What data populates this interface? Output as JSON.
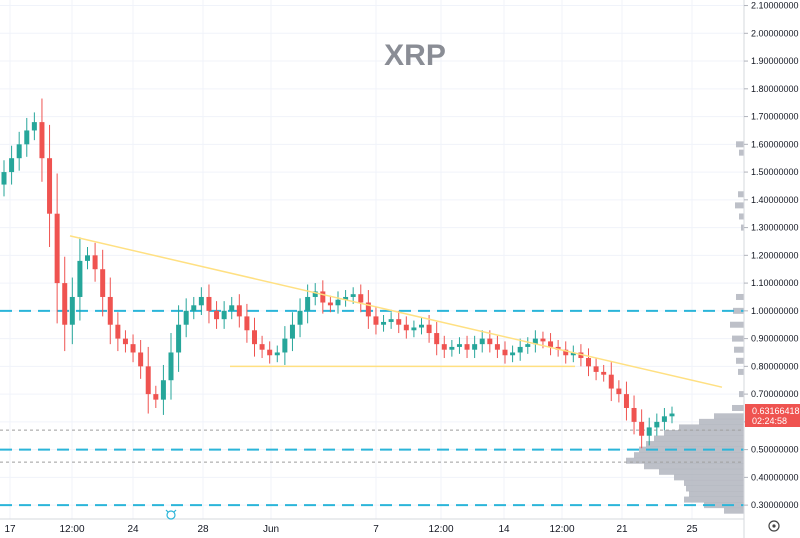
{
  "chart_data": {
    "type": "candlestick",
    "title": "XRP",
    "price_label": "0.63166418",
    "countdown_label": "02:24:58",
    "colors": {
      "up": "#26a69a",
      "down": "#ef5350",
      "trendline": "#ffe082",
      "level_line": "#2bb5d9",
      "dotted_line": "#9e9e9e",
      "volume_profile": "#b2b5be",
      "price_tag": "#ef5350"
    },
    "y_axis": {
      "range": [
        0.25,
        2.12
      ],
      "ticks": [
        "2.10000000",
        "2.00000000",
        "1.90000000",
        "1.80000000",
        "1.70000000",
        "1.60000000",
        "1.50000000",
        "1.40000000",
        "1.30000000",
        "1.20000000",
        "1.10000000",
        "1.00000000",
        "0.90000000",
        "0.80000000",
        "0.70000000",
        "0.60000000",
        "0.50000000",
        "0.40000000",
        "0.30000000"
      ],
      "tick_values": [
        2.1,
        2.0,
        1.9,
        1.8,
        1.7,
        1.6,
        1.5,
        1.4,
        1.3,
        1.2,
        1.1,
        1.0,
        0.9,
        0.8,
        0.7,
        0.6,
        0.5,
        0.4,
        0.3
      ]
    },
    "x_axis": {
      "ticks": [
        "17",
        "12:00",
        "24",
        "28",
        "Jun",
        "7",
        "12:00",
        "14",
        "12:00",
        "21",
        "25"
      ]
    },
    "horizontal_levels_dashed": [
      1.0,
      0.5,
      0.3
    ],
    "horizontal_levels_dotted": [
      0.57,
      0.455
    ],
    "support_line": {
      "from_label": "28",
      "price": 0.8
    },
    "descending_trendline": {
      "start": 1.27,
      "end": 0.725
    },
    "close_series": [
      1.5,
      1.55,
      1.6,
      1.65,
      1.68,
      1.55,
      1.35,
      1.1,
      0.95,
      1.05,
      1.18,
      1.2,
      1.15,
      1.05,
      0.95,
      0.9,
      0.88,
      0.85,
      0.8,
      0.7,
      0.68,
      0.75,
      0.85,
      0.95,
      1.0,
      1.02,
      1.05,
      1.0,
      0.97,
      1.0,
      1.02,
      0.98,
      0.93,
      0.88,
      0.86,
      0.84,
      0.85,
      0.9,
      0.95,
      1.0,
      1.05,
      1.07,
      1.03,
      1.02,
      1.04,
      1.05,
      1.06,
      1.03,
      0.98,
      0.95,
      0.96,
      0.97,
      0.95,
      0.93,
      0.94,
      0.95,
      0.92,
      0.88,
      0.86,
      0.87,
      0.88,
      0.86,
      0.88,
      0.9,
      0.88,
      0.86,
      0.84,
      0.85,
      0.87,
      0.88,
      0.9,
      0.89,
      0.87,
      0.86,
      0.84,
      0.85,
      0.83,
      0.8,
      0.78,
      0.77,
      0.72,
      0.7,
      0.65,
      0.6,
      0.55,
      0.58,
      0.6,
      0.62,
      0.63
    ],
    "volume_profile": [
      {
        "price": 1.6,
        "w": 8
      },
      {
        "price": 1.57,
        "w": 5
      },
      {
        "price": 1.42,
        "w": 6
      },
      {
        "price": 1.38,
        "w": 9
      },
      {
        "price": 1.34,
        "w": 5
      },
      {
        "price": 1.3,
        "w": 3
      },
      {
        "price": 1.05,
        "w": 8
      },
      {
        "price": 1.0,
        "w": 11
      },
      {
        "price": 0.95,
        "w": 14
      },
      {
        "price": 0.9,
        "w": 12
      },
      {
        "price": 0.86,
        "w": 10
      },
      {
        "price": 0.82,
        "w": 8
      },
      {
        "price": 0.78,
        "w": 6
      },
      {
        "price": 0.7,
        "w": 5
      },
      {
        "price": 0.65,
        "w": 12
      },
      {
        "price": 0.62,
        "w": 30
      },
      {
        "price": 0.6,
        "w": 45
      },
      {
        "price": 0.58,
        "w": 65
      },
      {
        "price": 0.56,
        "w": 80
      },
      {
        "price": 0.54,
        "w": 90
      },
      {
        "price": 0.52,
        "w": 98
      },
      {
        "price": 0.5,
        "w": 105
      },
      {
        "price": 0.48,
        "w": 110
      },
      {
        "price": 0.46,
        "w": 118
      },
      {
        "price": 0.44,
        "w": 100
      },
      {
        "price": 0.42,
        "w": 85
      },
      {
        "price": 0.4,
        "w": 70
      },
      {
        "price": 0.38,
        "w": 60
      },
      {
        "price": 0.36,
        "w": 58
      },
      {
        "price": 0.34,
        "w": 55
      },
      {
        "price": 0.32,
        "w": 60
      },
      {
        "price": 0.3,
        "w": 40
      },
      {
        "price": 0.28,
        "w": 20
      }
    ]
  }
}
